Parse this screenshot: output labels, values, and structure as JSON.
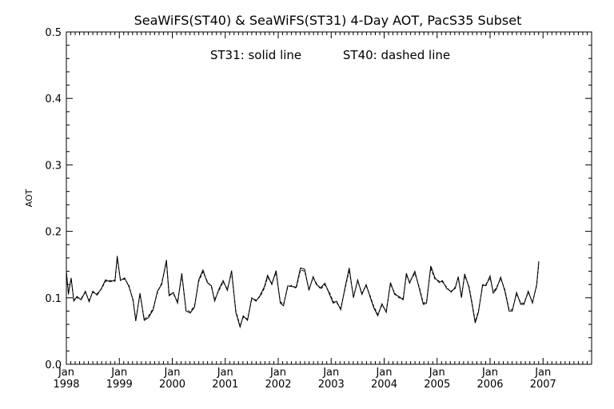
{
  "chart_data": {
    "type": "line",
    "title": "SeaWiFS(ST40) & SeaWiFS(ST31) 4-Day AOT, PacS35 Subset",
    "annotation": {
      "solid_label": "ST31: solid line",
      "dashed_label": "ST40: dashed line"
    },
    "ylabel": "AOT",
    "xlabel": "",
    "xlim": [
      1998.0,
      2007.917
    ],
    "ylim": [
      0.0,
      0.5
    ],
    "yticks": [
      "0.0",
      "0.1",
      "0.2",
      "0.3",
      "0.4",
      "0.5"
    ],
    "xticks": [
      {
        "month": "Jan",
        "year": "1998"
      },
      {
        "month": "Jan",
        "year": "1999"
      },
      {
        "month": "Jan",
        "year": "2000"
      },
      {
        "month": "Jan",
        "year": "2001"
      },
      {
        "month": "Jan",
        "year": "2002"
      },
      {
        "month": "Jan",
        "year": "2003"
      },
      {
        "month": "Jan",
        "year": "2004"
      },
      {
        "month": "Jan",
        "year": "2005"
      },
      {
        "month": "Jan",
        "year": "2006"
      },
      {
        "month": "Jan",
        "year": "2007"
      }
    ],
    "grid": false,
    "series": [
      {
        "name": "ST31",
        "style": "solid",
        "color": "#000000",
        "points": [
          [
            1998.0,
            0.14
          ],
          [
            1998.04,
            0.105
          ],
          [
            1998.09,
            0.13
          ],
          [
            1998.14,
            0.095
          ],
          [
            1998.2,
            0.102
          ],
          [
            1998.28,
            0.097
          ],
          [
            1998.36,
            0.11
          ],
          [
            1998.43,
            0.094
          ],
          [
            1998.5,
            0.11
          ],
          [
            1998.58,
            0.104
          ],
          [
            1998.66,
            0.114
          ],
          [
            1998.74,
            0.127
          ],
          [
            1998.83,
            0.124
          ],
          [
            1998.92,
            0.127
          ],
          [
            1998.96,
            0.163
          ],
          [
            1999.02,
            0.126
          ],
          [
            1999.1,
            0.13
          ],
          [
            1999.18,
            0.117
          ],
          [
            1999.26,
            0.097
          ],
          [
            1999.31,
            0.065
          ],
          [
            1999.39,
            0.107
          ],
          [
            1999.47,
            0.066
          ],
          [
            1999.55,
            0.07
          ],
          [
            1999.64,
            0.082
          ],
          [
            1999.72,
            0.11
          ],
          [
            1999.8,
            0.12
          ],
          [
            1999.89,
            0.157
          ],
          [
            1999.94,
            0.103
          ],
          [
            2000.02,
            0.108
          ],
          [
            2000.1,
            0.092
          ],
          [
            2000.18,
            0.137
          ],
          [
            2000.26,
            0.08
          ],
          [
            2000.34,
            0.077
          ],
          [
            2000.42,
            0.086
          ],
          [
            2000.5,
            0.127
          ],
          [
            2000.58,
            0.142
          ],
          [
            2000.66,
            0.123
          ],
          [
            2000.74,
            0.118
          ],
          [
            2000.8,
            0.095
          ],
          [
            2000.88,
            0.113
          ],
          [
            2000.96,
            0.126
          ],
          [
            2001.04,
            0.111
          ],
          [
            2001.12,
            0.141
          ],
          [
            2001.2,
            0.078
          ],
          [
            2001.28,
            0.056
          ],
          [
            2001.34,
            0.073
          ],
          [
            2001.42,
            0.066
          ],
          [
            2001.5,
            0.1
          ],
          [
            2001.58,
            0.095
          ],
          [
            2001.66,
            0.104
          ],
          [
            2001.74,
            0.117
          ],
          [
            2001.8,
            0.134
          ],
          [
            2001.88,
            0.12
          ],
          [
            2001.96,
            0.141
          ],
          [
            2002.04,
            0.092
          ],
          [
            2002.1,
            0.088
          ],
          [
            2002.18,
            0.118
          ],
          [
            2002.26,
            0.117
          ],
          [
            2002.34,
            0.116
          ],
          [
            2002.42,
            0.145
          ],
          [
            2002.5,
            0.143
          ],
          [
            2002.58,
            0.111
          ],
          [
            2002.66,
            0.132
          ],
          [
            2002.72,
            0.12
          ],
          [
            2002.8,
            0.115
          ],
          [
            2002.88,
            0.122
          ],
          [
            2002.96,
            0.107
          ],
          [
            2003.04,
            0.092
          ],
          [
            2003.1,
            0.095
          ],
          [
            2003.18,
            0.082
          ],
          [
            2003.26,
            0.115
          ],
          [
            2003.34,
            0.145
          ],
          [
            2003.42,
            0.1
          ],
          [
            2003.5,
            0.127
          ],
          [
            2003.58,
            0.105
          ],
          [
            2003.66,
            0.12
          ],
          [
            2003.74,
            0.1
          ],
          [
            2003.8,
            0.086
          ],
          [
            2003.88,
            0.073
          ],
          [
            2003.96,
            0.091
          ],
          [
            2004.04,
            0.078
          ],
          [
            2004.12,
            0.123
          ],
          [
            2004.2,
            0.105
          ],
          [
            2004.28,
            0.102
          ],
          [
            2004.36,
            0.097
          ],
          [
            2004.42,
            0.137
          ],
          [
            2004.48,
            0.122
          ],
          [
            2004.58,
            0.14
          ],
          [
            2004.66,
            0.115
          ],
          [
            2004.74,
            0.09
          ],
          [
            2004.8,
            0.092
          ],
          [
            2004.88,
            0.148
          ],
          [
            2004.96,
            0.13
          ],
          [
            2005.04,
            0.123
          ],
          [
            2005.1,
            0.126
          ],
          [
            2005.18,
            0.114
          ],
          [
            2005.26,
            0.11
          ],
          [
            2005.34,
            0.114
          ],
          [
            2005.4,
            0.132
          ],
          [
            2005.46,
            0.1
          ],
          [
            2005.52,
            0.136
          ],
          [
            2005.6,
            0.116
          ],
          [
            2005.66,
            0.09
          ],
          [
            2005.72,
            0.062
          ],
          [
            2005.78,
            0.078
          ],
          [
            2005.86,
            0.12
          ],
          [
            2005.92,
            0.118
          ],
          [
            2006.0,
            0.133
          ],
          [
            2006.06,
            0.107
          ],
          [
            2006.12,
            0.113
          ],
          [
            2006.2,
            0.131
          ],
          [
            2006.28,
            0.11
          ],
          [
            2006.36,
            0.08
          ],
          [
            2006.42,
            0.08
          ],
          [
            2006.5,
            0.108
          ],
          [
            2006.58,
            0.09
          ],
          [
            2006.64,
            0.09
          ],
          [
            2006.72,
            0.11
          ],
          [
            2006.8,
            0.092
          ],
          [
            2006.88,
            0.12
          ],
          [
            2006.92,
            0.155
          ]
        ]
      },
      {
        "name": "ST40",
        "style": "dashed",
        "color": "#000000",
        "points": [
          [
            1998.0,
            0.138
          ],
          [
            1998.04,
            0.108
          ],
          [
            1998.09,
            0.128
          ],
          [
            1998.14,
            0.097
          ],
          [
            1998.2,
            0.1
          ],
          [
            1998.28,
            0.099
          ],
          [
            1998.36,
            0.108
          ],
          [
            1998.43,
            0.096
          ],
          [
            1998.5,
            0.108
          ],
          [
            1998.58,
            0.106
          ],
          [
            1998.66,
            0.113
          ],
          [
            1998.74,
            0.125
          ],
          [
            1998.83,
            0.126
          ],
          [
            1998.92,
            0.125
          ],
          [
            1998.96,
            0.16
          ],
          [
            1999.02,
            0.128
          ],
          [
            1999.1,
            0.128
          ],
          [
            1999.18,
            0.119
          ],
          [
            1999.26,
            0.095
          ],
          [
            1999.31,
            0.067
          ],
          [
            1999.39,
            0.105
          ],
          [
            1999.47,
            0.068
          ],
          [
            1999.55,
            0.072
          ],
          [
            1999.64,
            0.084
          ],
          [
            1999.72,
            0.108
          ],
          [
            1999.8,
            0.122
          ],
          [
            1999.89,
            0.154
          ],
          [
            1999.94,
            0.105
          ],
          [
            2000.02,
            0.106
          ],
          [
            2000.1,
            0.094
          ],
          [
            2000.18,
            0.134
          ],
          [
            2000.26,
            0.082
          ],
          [
            2000.34,
            0.079
          ],
          [
            2000.42,
            0.088
          ],
          [
            2000.5,
            0.125
          ],
          [
            2000.58,
            0.139
          ],
          [
            2000.66,
            0.125
          ],
          [
            2000.74,
            0.116
          ],
          [
            2000.8,
            0.097
          ],
          [
            2000.88,
            0.111
          ],
          [
            2000.96,
            0.124
          ],
          [
            2001.04,
            0.113
          ],
          [
            2001.12,
            0.138
          ],
          [
            2001.2,
            0.08
          ],
          [
            2001.28,
            0.058
          ],
          [
            2001.34,
            0.071
          ],
          [
            2001.42,
            0.068
          ],
          [
            2001.5,
            0.098
          ],
          [
            2001.58,
            0.097
          ],
          [
            2001.66,
            0.102
          ],
          [
            2001.74,
            0.115
          ],
          [
            2001.8,
            0.131
          ],
          [
            2001.88,
            0.122
          ],
          [
            2001.96,
            0.138
          ],
          [
            2002.04,
            0.094
          ],
          [
            2002.1,
            0.09
          ],
          [
            2002.18,
            0.116
          ],
          [
            2002.26,
            0.119
          ],
          [
            2002.34,
            0.114
          ],
          [
            2002.42,
            0.142
          ],
          [
            2002.5,
            0.14
          ],
          [
            2002.58,
            0.113
          ],
          [
            2002.66,
            0.13
          ],
          [
            2002.72,
            0.122
          ],
          [
            2002.8,
            0.113
          ],
          [
            2002.88,
            0.12
          ],
          [
            2002.96,
            0.109
          ],
          [
            2003.04,
            0.094
          ],
          [
            2003.1,
            0.093
          ],
          [
            2003.18,
            0.084
          ],
          [
            2003.26,
            0.113
          ],
          [
            2003.34,
            0.142
          ],
          [
            2003.42,
            0.102
          ],
          [
            2003.5,
            0.125
          ],
          [
            2003.58,
            0.107
          ],
          [
            2003.66,
            0.118
          ],
          [
            2003.74,
            0.102
          ],
          [
            2003.8,
            0.088
          ],
          [
            2003.88,
            0.075
          ],
          [
            2003.96,
            0.089
          ],
          [
            2004.04,
            0.08
          ],
          [
            2004.12,
            0.121
          ],
          [
            2004.2,
            0.107
          ],
          [
            2004.28,
            0.1
          ],
          [
            2004.36,
            0.099
          ],
          [
            2004.42,
            0.134
          ],
          [
            2004.48,
            0.124
          ],
          [
            2004.58,
            0.137
          ],
          [
            2004.66,
            0.117
          ],
          [
            2004.74,
            0.092
          ],
          [
            2004.8,
            0.094
          ],
          [
            2004.88,
            0.145
          ],
          [
            2004.96,
            0.128
          ],
          [
            2005.04,
            0.125
          ],
          [
            2005.1,
            0.124
          ],
          [
            2005.18,
            0.116
          ],
          [
            2005.26,
            0.108
          ],
          [
            2005.34,
            0.116
          ],
          [
            2005.4,
            0.13
          ],
          [
            2005.46,
            0.102
          ],
          [
            2005.52,
            0.133
          ],
          [
            2005.6,
            0.118
          ],
          [
            2005.66,
            0.092
          ],
          [
            2005.72,
            0.064
          ],
          [
            2005.78,
            0.08
          ],
          [
            2005.86,
            0.118
          ],
          [
            2005.92,
            0.12
          ],
          [
            2006.0,
            0.13
          ],
          [
            2006.06,
            0.109
          ],
          [
            2006.12,
            0.115
          ],
          [
            2006.2,
            0.129
          ],
          [
            2006.28,
            0.112
          ],
          [
            2006.36,
            0.082
          ],
          [
            2006.42,
            0.082
          ],
          [
            2006.5,
            0.106
          ],
          [
            2006.58,
            0.092
          ],
          [
            2006.64,
            0.092
          ],
          [
            2006.72,
            0.108
          ],
          [
            2006.8,
            0.094
          ],
          [
            2006.88,
            0.118
          ],
          [
            2006.92,
            0.152
          ]
        ]
      }
    ]
  }
}
